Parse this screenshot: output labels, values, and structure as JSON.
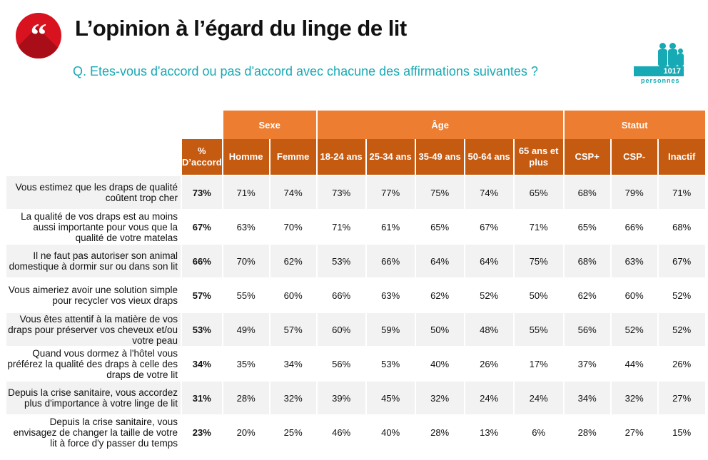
{
  "header": {
    "logo_glyph": "“",
    "title": "L’opinion à l’égard du linge de lit",
    "question": "Q. Etes-vous d'accord ou pas d'accord avec chacune des affirmations suivantes ?",
    "sample_count": "1017",
    "sample_label": "personnes"
  },
  "colors": {
    "accent_teal": "#17a9b4",
    "header_orange": "#ed7d31",
    "subheader_orange": "#c55a11",
    "logo_red": "#d9121f"
  },
  "table": {
    "groups": [
      "Sexe",
      "Âge",
      "Statut"
    ],
    "columns": [
      "% D’accord",
      "Homme",
      "Femme",
      "18-24 ans",
      "25-34 ans",
      "35-49 ans",
      "50-64 ans",
      "65 ans et plus",
      "CSP+",
      "CSP-",
      "Inactif"
    ],
    "rows": [
      {
        "label": "Vous estimez que les draps de qualité coûtent trop cher",
        "values": [
          "73%",
          "71%",
          "74%",
          "73%",
          "77%",
          "75%",
          "74%",
          "65%",
          "68%",
          "79%",
          "71%"
        ]
      },
      {
        "label": "La qualité de vos draps est au moins aussi importante pour vous que la qualité de votre matelas",
        "values": [
          "67%",
          "63%",
          "70%",
          "71%",
          "61%",
          "65%",
          "67%",
          "71%",
          "65%",
          "66%",
          "68%"
        ]
      },
      {
        "label": "Il ne faut pas autoriser son animal domestique à dormir sur ou dans son lit",
        "values": [
          "66%",
          "70%",
          "62%",
          "53%",
          "66%",
          "64%",
          "64%",
          "75%",
          "68%",
          "63%",
          "67%"
        ]
      },
      {
        "label": "Vous aimeriez avoir une solution simple pour recycler vos vieux draps",
        "values": [
          "57%",
          "55%",
          "60%",
          "66%",
          "63%",
          "62%",
          "52%",
          "50%",
          "62%",
          "60%",
          "52%"
        ]
      },
      {
        "label": "Vous êtes attentif à la matière de vos draps pour préserver vos cheveux et/ou votre peau",
        "values": [
          "53%",
          "49%",
          "57%",
          "60%",
          "59%",
          "50%",
          "48%",
          "55%",
          "56%",
          "52%",
          "52%"
        ]
      },
      {
        "label": "Quand vous dormez à l'hôtel vous préférez la qualité des draps à celle des draps de votre lit",
        "values": [
          "34%",
          "35%",
          "34%",
          "56%",
          "53%",
          "40%",
          "26%",
          "17%",
          "37%",
          "44%",
          "26%"
        ]
      },
      {
        "label": "Depuis la crise sanitaire, vous accordez plus d'importance à votre linge de lit",
        "values": [
          "31%",
          "28%",
          "32%",
          "39%",
          "45%",
          "32%",
          "24%",
          "24%",
          "34%",
          "32%",
          "27%"
        ]
      },
      {
        "label": "Depuis la crise sanitaire, vous envisagez de changer la taille de votre lit à force d'y passer du temps",
        "values": [
          "23%",
          "20%",
          "25%",
          "46%",
          "40%",
          "28%",
          "13%",
          "6%",
          "28%",
          "27%",
          "15%"
        ]
      }
    ]
  }
}
